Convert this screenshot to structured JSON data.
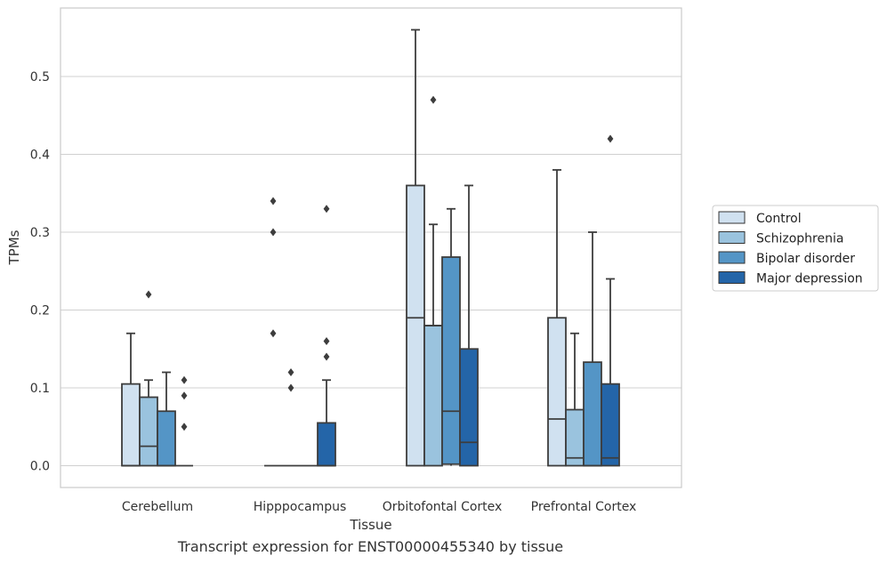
{
  "caption": "Transcript expression for ENST00000455340 by tissue",
  "chart_data": {
    "type": "boxplot",
    "xlabel": "Tissue",
    "ylabel": "TPMs",
    "ylim": [
      -0.028,
      0.588
    ],
    "yticks": [
      0.0,
      0.1,
      0.2,
      0.3,
      0.4,
      0.5
    ],
    "ytick_labels": [
      "0.0",
      "0.1",
      "0.2",
      "0.3",
      "0.4",
      "0.5"
    ],
    "grid": true,
    "legend_position": "right",
    "categories": [
      "Cerebellum",
      "Hipppocampus",
      "Orbitofontal Cortex",
      "Prefrontal Cortex"
    ],
    "series": [
      {
        "name": "Control",
        "color": "#d0e1f0",
        "boxes": [
          {
            "q1": 0.0,
            "median": 0.0,
            "q3": 0.105,
            "whisker_low": 0.0,
            "whisker_high": 0.17,
            "outliers": []
          },
          {
            "q1": 0.0,
            "median": 0.0,
            "q3": 0.0,
            "whisker_low": 0.0,
            "whisker_high": 0.0,
            "outliers": [
              0.17,
              0.3,
              0.34
            ]
          },
          {
            "q1": 0.0,
            "median": 0.19,
            "q3": 0.36,
            "whisker_low": 0.0,
            "whisker_high": 0.56,
            "outliers": []
          },
          {
            "q1": 0.0,
            "median": 0.06,
            "q3": 0.19,
            "whisker_low": 0.0,
            "whisker_high": 0.38,
            "outliers": []
          }
        ]
      },
      {
        "name": "Schizophrenia",
        "color": "#9ac3de",
        "boxes": [
          {
            "q1": 0.0,
            "median": 0.025,
            "q3": 0.088,
            "whisker_low": 0.0,
            "whisker_high": 0.11,
            "outliers": [
              0.22
            ]
          },
          {
            "q1": 0.0,
            "median": 0.0,
            "q3": 0.0,
            "whisker_low": 0.0,
            "whisker_high": 0.0,
            "outliers": [
              0.1,
              0.12
            ]
          },
          {
            "q1": 0.0,
            "median": 0.18,
            "q3": 0.18,
            "whisker_low": 0.0,
            "whisker_high": 0.31,
            "outliers": [
              0.47
            ]
          },
          {
            "q1": 0.0,
            "median": 0.01,
            "q3": 0.072,
            "whisker_low": 0.0,
            "whisker_high": 0.17,
            "outliers": []
          }
        ]
      },
      {
        "name": "Bipolar disorder",
        "color": "#5495c6",
        "boxes": [
          {
            "q1": 0.0,
            "median": 0.0,
            "q3": 0.07,
            "whisker_low": 0.0,
            "whisker_high": 0.12,
            "outliers": []
          },
          {
            "q1": 0.0,
            "median": 0.0,
            "q3": 0.0,
            "whisker_low": 0.0,
            "whisker_high": 0.0,
            "outliers": []
          },
          {
            "q1": 0.002,
            "median": 0.07,
            "q3": 0.268,
            "whisker_low": 0.0,
            "whisker_high": 0.33,
            "outliers": []
          },
          {
            "q1": 0.0,
            "median": 0.0,
            "q3": 0.133,
            "whisker_low": 0.0,
            "whisker_high": 0.3,
            "outliers": []
          }
        ]
      },
      {
        "name": "Major depression",
        "color": "#2465a8",
        "boxes": [
          {
            "q1": 0.0,
            "median": 0.0,
            "q3": 0.0,
            "whisker_low": 0.0,
            "whisker_high": 0.0,
            "outliers": [
              0.05,
              0.09,
              0.11
            ]
          },
          {
            "q1": 0.0,
            "median": 0.0,
            "q3": 0.055,
            "whisker_low": 0.0,
            "whisker_high": 0.11,
            "outliers": [
              0.14,
              0.16,
              0.33
            ]
          },
          {
            "q1": 0.0,
            "median": 0.03,
            "q3": 0.15,
            "whisker_low": 0.0,
            "whisker_high": 0.36,
            "outliers": []
          },
          {
            "q1": 0.0,
            "median": 0.01,
            "q3": 0.105,
            "whisker_low": 0.0,
            "whisker_high": 0.24,
            "outliers": [
              0.42
            ]
          }
        ]
      }
    ]
  }
}
